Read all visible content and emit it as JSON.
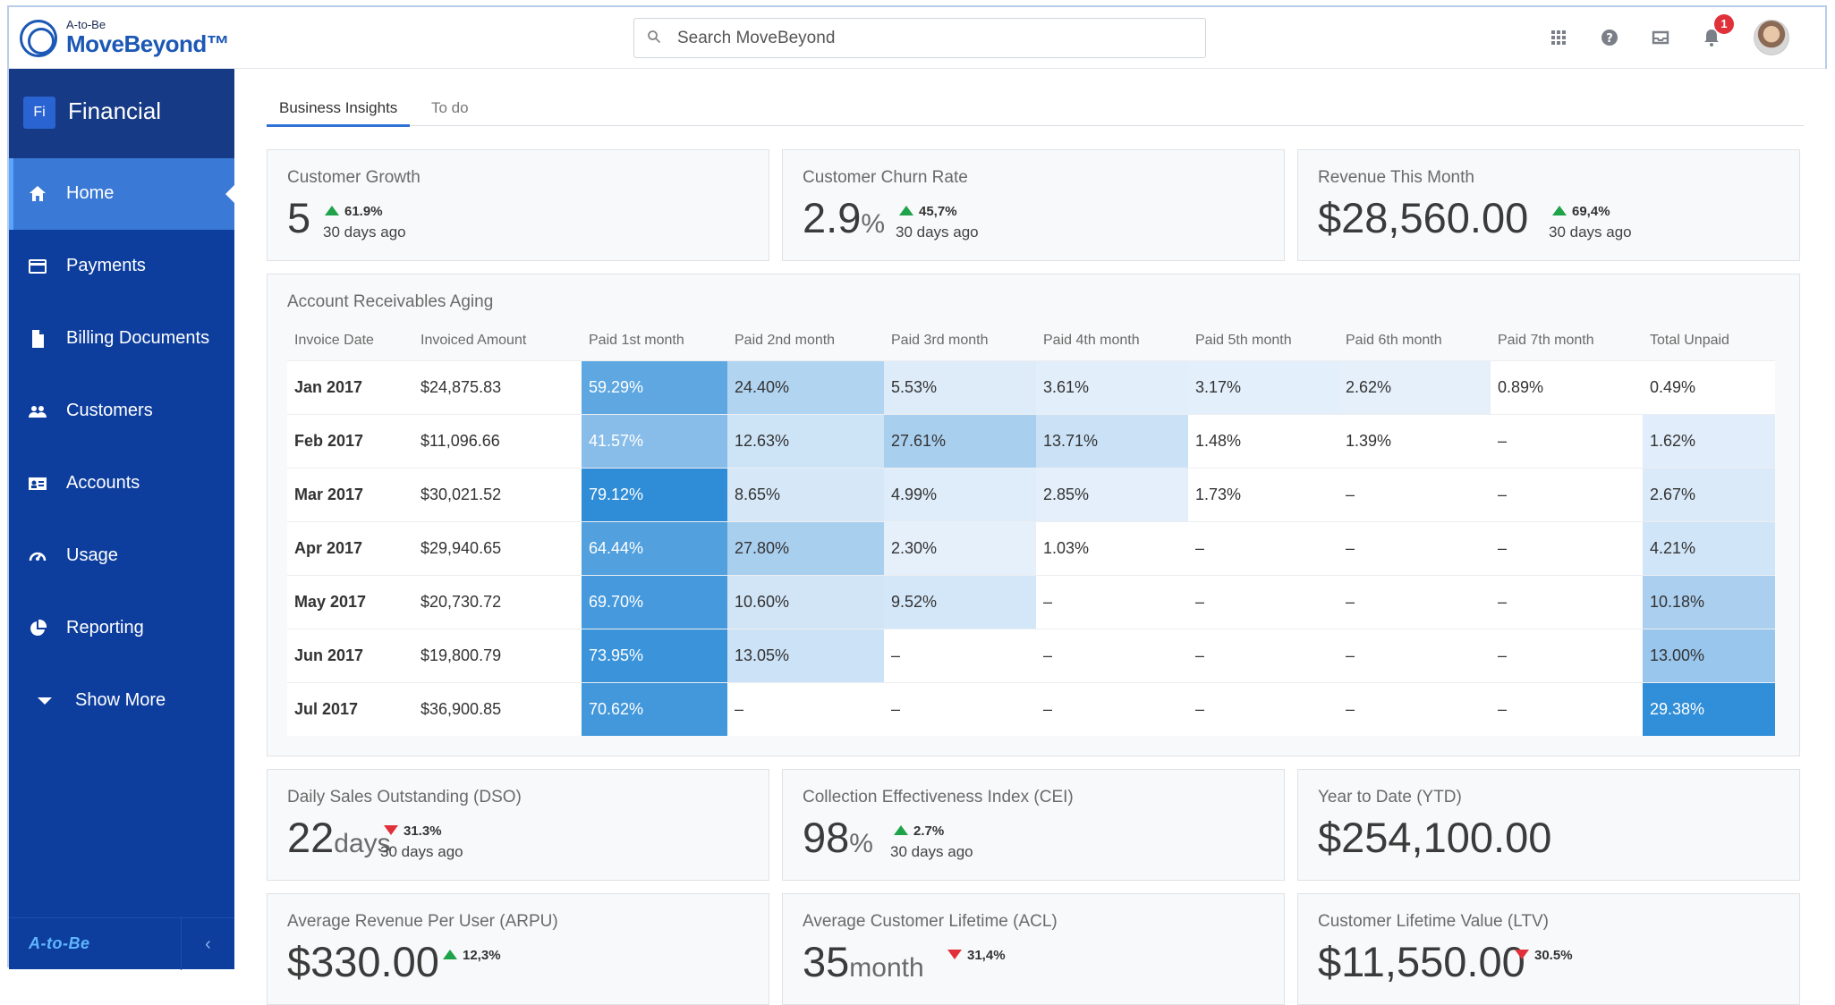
{
  "brand": {
    "small": "A-to-Be",
    "name": "MoveBeyond™",
    "footer_logo": "A-to-Be"
  },
  "search": {
    "placeholder": "Search MoveBeyond"
  },
  "header": {
    "notification_count": "1",
    "icons": [
      "apps-grid-icon",
      "help-icon",
      "inbox-icon",
      "bell-icon"
    ]
  },
  "module": {
    "badge": "Fi",
    "title": "Financial"
  },
  "sidebar": {
    "items": [
      {
        "label": "Home",
        "icon": "home-icon",
        "active": true
      },
      {
        "label": "Payments",
        "icon": "card-icon"
      },
      {
        "label": "Billing Documents",
        "icon": "document-icon"
      },
      {
        "label": "Customers",
        "icon": "people-icon"
      },
      {
        "label": "Accounts",
        "icon": "id-card-icon"
      },
      {
        "label": "Usage",
        "icon": "gauge-icon"
      },
      {
        "label": "Reporting",
        "icon": "pie-icon"
      },
      {
        "label": "Show More",
        "icon": "caret-down-icon"
      }
    ],
    "collapse_icon": "‹"
  },
  "tabs": [
    {
      "label": "Business Insights",
      "active": true
    },
    {
      "label": "To do"
    }
  ],
  "kpis": {
    "growth": {
      "title": "Customer Growth",
      "value": "5",
      "delta": "61.9%",
      "ago": "30 days ago",
      "trend": "up"
    },
    "churn": {
      "title": "Customer Churn Rate",
      "value": "2.9",
      "unit": "%",
      "delta": "45,7%",
      "ago": "30 days ago",
      "trend": "up"
    },
    "revenue": {
      "title": "Revenue This Month",
      "value": "$28,560.00",
      "delta": "69,4%",
      "ago": "30 days ago",
      "trend": "up"
    },
    "dso": {
      "title": "Daily Sales Outstanding (DSO)",
      "value": "22",
      "unit": "days",
      "delta": "31.3%",
      "ago": "30 days ago",
      "trend": "down"
    },
    "cei": {
      "title": "Collection Effectiveness Index (CEI)",
      "value": "98",
      "unit": "%",
      "delta": "2.7%",
      "ago": "30 days ago",
      "trend": "up"
    },
    "ytd": {
      "title": "Year to Date (YTD)",
      "value": "$254,100.00"
    },
    "arpu": {
      "title": "Average Revenue Per User (ARPU)",
      "value": "$330.00",
      "delta": "12,3%",
      "trend": "up"
    },
    "acl": {
      "title": "Average Customer Lifetime (ACL)",
      "value": "35",
      "unit": "month",
      "delta": "31,4%",
      "trend": "down"
    },
    "ltv": {
      "title": "Customer Lifetime Value (LTV)",
      "value": "$11,550.00",
      "delta": "30.5%",
      "trend": "down"
    }
  },
  "aging": {
    "title": "Account Receivables Aging",
    "columns": [
      "Invoice Date",
      "Invoiced Amount",
      "Paid 1st month",
      "Paid 2nd month",
      "Paid 3rd month",
      "Paid 4th month",
      "Paid 5th month",
      "Paid 6th month",
      "Paid 7th month",
      "Total Unpaid"
    ],
    "rows": [
      {
        "date": "Jan 2017",
        "amount": "$24,875.83",
        "cells": [
          "59.29%",
          "24.40%",
          "5.53%",
          "3.61%",
          "3.17%",
          "2.62%",
          "0.89%",
          "0.49%"
        ]
      },
      {
        "date": "Feb 2017",
        "amount": "$11,096.66",
        "cells": [
          "41.57%",
          "12.63%",
          "27.61%",
          "13.71%",
          "1.48%",
          "1.39%",
          "–",
          "1.62%"
        ]
      },
      {
        "date": "Mar 2017",
        "amount": "$30,021.52",
        "cells": [
          "79.12%",
          "8.65%",
          "4.99%",
          "2.85%",
          "1.73%",
          "–",
          "–",
          "2.67%"
        ]
      },
      {
        "date": "Apr 2017",
        "amount": "$29,940.65",
        "cells": [
          "64.44%",
          "27.80%",
          "2.30%",
          "1.03%",
          "–",
          "–",
          "–",
          "4.21%"
        ]
      },
      {
        "date": "May 2017",
        "amount": "$20,730.72",
        "cells": [
          "69.70%",
          "10.60%",
          "9.52%",
          "–",
          "–",
          "–",
          "–",
          "10.18%"
        ]
      },
      {
        "date": "Jun 2017",
        "amount": "$19,800.79",
        "cells": [
          "73.95%",
          "13.05%",
          "–",
          "–",
          "–",
          "–",
          "–",
          "13.00%"
        ]
      },
      {
        "date": "Jul 2017",
        "amount": "$36,900.85",
        "cells": [
          "70.62%",
          "–",
          "–",
          "–",
          "–",
          "–",
          "–",
          "29.38%"
        ]
      }
    ]
  }
}
